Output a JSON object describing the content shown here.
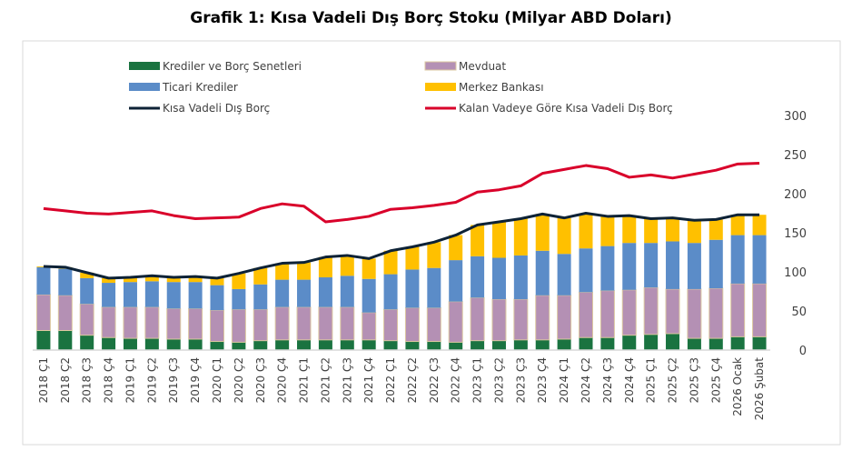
{
  "chart_data": {
    "type": "bar",
    "stacked": true,
    "title": "Grafik 1: Kısa Vadeli Dış Borç Stoku (Milyar ABD Doları)",
    "ylim": [
      0,
      300
    ],
    "yticks": [
      0,
      50,
      100,
      150,
      200,
      250,
      300
    ],
    "y_axis_side": "right",
    "grid": false,
    "legend_placement": "top",
    "categories": [
      "2018 Ç1",
      "2018 Ç2",
      "2018 Ç3",
      "2018 Ç4",
      "2019 Ç1",
      "2019 Ç2",
      "2019 Ç3",
      "2019 Ç4",
      "2020 Ç1",
      "2020 Ç2",
      "2020 Ç3",
      "2020 Ç4",
      "2021 Ç1",
      "2021 Ç2",
      "2021 Ç3",
      "2021 Ç4",
      "2022 Ç1",
      "2022 Ç2",
      "2022 Ç3",
      "2022 Ç4",
      "2023 Ç1",
      "2023 Ç2",
      "2023 Ç3",
      "2023 Ç4",
      "2024 Ç1",
      "2024 Ç2",
      "2024 Ç3",
      "2024 Ç4",
      "2025 Ç1",
      "2025 Ç2",
      "2025 Ç3",
      "2025 Ç4",
      "2026 Ocak",
      "2026 Şubat"
    ],
    "series": [
      {
        "name": "Krediler ve Borç Senetleri",
        "kind": "bar",
        "color": "#1a7340",
        "values": [
          25,
          25,
          19,
          16,
          15,
          15,
          14,
          14,
          11,
          10,
          12,
          13,
          13,
          13,
          13,
          13,
          12,
          11,
          11,
          10,
          12,
          12,
          13,
          13,
          14,
          16,
          16,
          19,
          20,
          21,
          15,
          15,
          17,
          17
        ]
      },
      {
        "name": "Mevduat",
        "kind": "bar",
        "color": "#b490b4",
        "values": [
          46,
          45,
          40,
          39,
          40,
          40,
          39,
          39,
          40,
          42,
          40,
          42,
          42,
          42,
          42,
          35,
          40,
          43,
          43,
          52,
          55,
          53,
          52,
          57,
          56,
          58,
          60,
          58,
          60,
          57,
          63,
          64,
          68,
          68
        ]
      },
      {
        "name": "Ticari Krediler",
        "kind": "bar",
        "color": "#5b8cc8",
        "values": [
          35,
          34,
          33,
          31,
          32,
          33,
          34,
          34,
          32,
          26,
          32,
          35,
          35,
          38,
          40,
          43,
          45,
          49,
          51,
          53,
          53,
          53,
          56,
          57,
          53,
          56,
          57,
          60,
          57,
          61,
          59,
          62,
          62,
          62
        ]
      },
      {
        "name": "Merkez Bankası",
        "kind": "bar",
        "color": "#ffc000",
        "values": [
          1,
          2,
          7,
          6,
          6,
          7,
          6,
          7,
          9,
          20,
          21,
          21,
          22,
          26,
          26,
          26,
          30,
          29,
          33,
          32,
          40,
          46,
          47,
          47,
          46,
          45,
          38,
          35,
          31,
          30,
          29,
          26,
          26,
          26
        ]
      },
      {
        "name": "Kısa Vadeli Dış Borç",
        "kind": "line",
        "color": "#0d2236",
        "values": [
          107,
          106,
          99,
          92,
          93,
          95,
          93,
          94,
          92,
          98,
          105,
          111,
          112,
          119,
          121,
          117,
          127,
          132,
          138,
          147,
          160,
          164,
          168,
          174,
          169,
          175,
          171,
          172,
          168,
          169,
          166,
          167,
          173,
          173
        ]
      },
      {
        "name": "Kalan Vadeye Göre Kısa Vadeli Dış Borç",
        "kind": "line",
        "color": "#d9002a",
        "values": [
          181,
          178,
          175,
          174,
          176,
          178,
          172,
          168,
          169,
          170,
          181,
          187,
          184,
          164,
          167,
          171,
          180,
          182,
          185,
          189,
          202,
          205,
          210,
          226,
          231,
          236,
          232,
          221,
          224,
          220,
          225,
          230,
          238,
          239
        ]
      }
    ]
  }
}
